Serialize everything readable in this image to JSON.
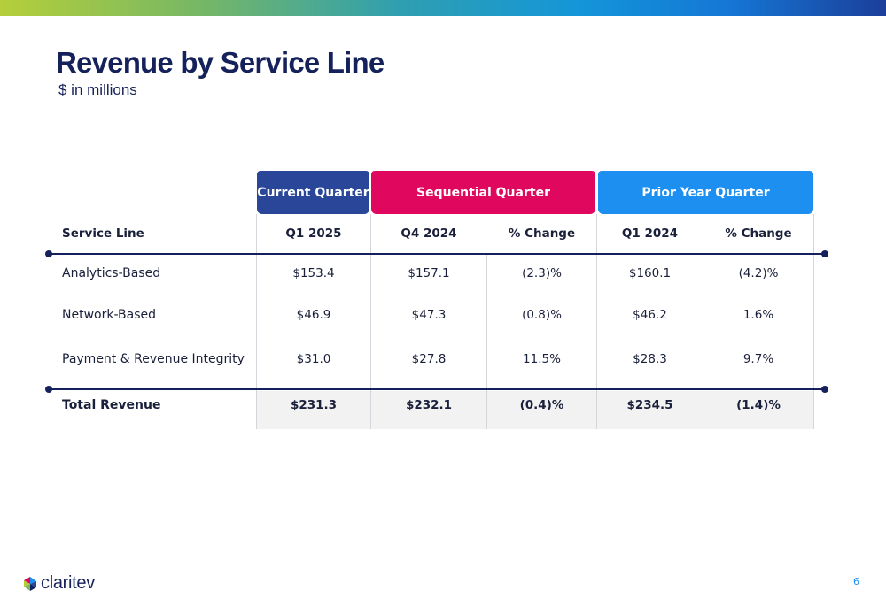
{
  "slide": {
    "title": "Revenue by Service Line",
    "subtitle": "$ in millions",
    "page_number": "6",
    "logo_text": "claritev"
  },
  "table": {
    "groups": {
      "current": "Current Quarter",
      "sequential": "Sequential Quarter",
      "prior": "Prior Year Quarter"
    },
    "headers": {
      "service_line": "Service Line",
      "q1_2025": "Q1 2025",
      "q4_2024": "Q4 2024",
      "seq_change": "% Change",
      "q1_2024": "Q1 2024",
      "yoy_change": "% Change"
    },
    "rows": [
      {
        "label": "Analytics-Based",
        "q1_2025": "$153.4",
        "q4_2024": "$157.1",
        "seq_change": "(2.3)%",
        "q1_2024": "$160.1",
        "yoy_change": "(4.2)%"
      },
      {
        "label": "Network-Based",
        "q1_2025": "$46.9",
        "q4_2024": "$47.3",
        "seq_change": "(0.8)%",
        "q1_2024": "$46.2",
        "yoy_change": "1.6%"
      },
      {
        "label": "Payment & Revenue Integrity",
        "q1_2025": "$31.0",
        "q4_2024": "$27.8",
        "seq_change": "11.5%",
        "q1_2024": "$28.3",
        "yoy_change": "9.7%"
      }
    ],
    "total": {
      "label": "Total Revenue",
      "q1_2025": "$231.3",
      "q4_2024": "$232.1",
      "seq_change": "(0.4)%",
      "q1_2024": "$234.5",
      "yoy_change": "(1.4)%"
    }
  },
  "colors": {
    "navy": "#15215a",
    "current_quarter": "#2a4699",
    "sequential_quarter": "#e0075e",
    "prior_year_quarter": "#1d8ff0"
  }
}
